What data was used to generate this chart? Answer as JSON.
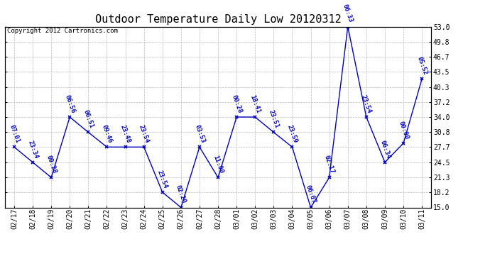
{
  "title": "Outdoor Temperature Daily Low 20120312",
  "copyright": "Copyright 2012 Cartronics.com",
  "dates": [
    "02/17",
    "02/18",
    "02/19",
    "02/20",
    "02/21",
    "02/22",
    "02/23",
    "02/24",
    "02/25",
    "02/26",
    "02/27",
    "02/28",
    "03/01",
    "03/02",
    "03/03",
    "03/04",
    "03/05",
    "03/06",
    "03/07",
    "03/08",
    "03/09",
    "03/10",
    "03/11"
  ],
  "values": [
    27.7,
    24.5,
    21.3,
    34.0,
    30.8,
    27.7,
    27.7,
    27.7,
    18.2,
    15.0,
    27.7,
    21.3,
    34.0,
    34.0,
    30.8,
    27.7,
    15.0,
    21.3,
    53.0,
    34.0,
    24.5,
    28.5,
    42.0
  ],
  "time_labels": [
    "07:01",
    "23:34",
    "09:28",
    "06:56",
    "06:51",
    "09:46",
    "23:48",
    "23:54",
    "23:54",
    "02:20",
    "03:53",
    "11:00",
    "00:28",
    "18:41",
    "23:51",
    "23:59",
    "06:07",
    "02:17",
    "06:33",
    "23:54",
    "06:34",
    "00:00",
    "05:52"
  ],
  "line_color": "#0000bb",
  "marker_color": "#0000bb",
  "background_color": "#ffffff",
  "grid_color": "#bbbbbb",
  "ylim": [
    15.0,
    53.0
  ],
  "yticks": [
    15.0,
    18.2,
    21.3,
    24.5,
    27.7,
    30.8,
    34.0,
    37.2,
    40.3,
    43.5,
    46.7,
    49.8,
    53.0
  ],
  "title_fontsize": 11,
  "label_fontsize": 6.5,
  "tick_fontsize": 7,
  "copyright_fontsize": 6.5
}
